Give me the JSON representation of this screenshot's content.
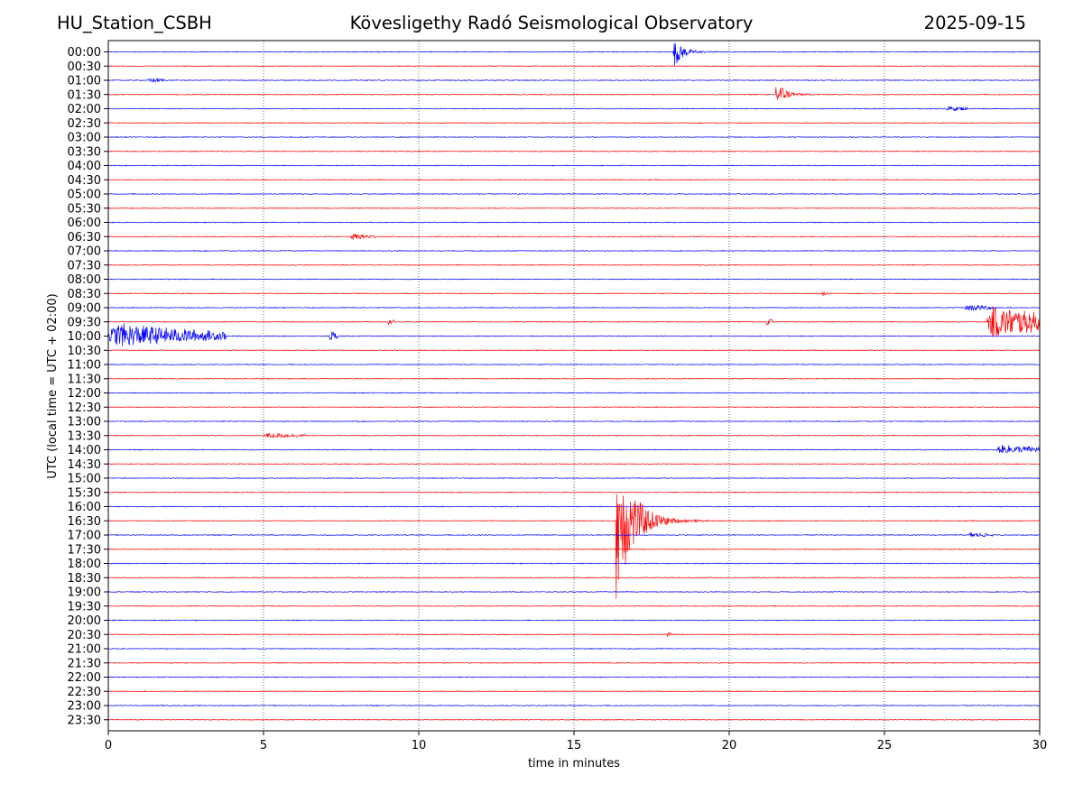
{
  "header": {
    "station": "HU_Station_CSBH",
    "title": "Kövesligethy Radó Seismological Observatory",
    "date": "2025-09-15"
  },
  "chart_data": {
    "type": "line",
    "title": "Kövesligethy Radó Seismological Observatory",
    "xlabel": "time in minutes",
    "ylabel": "UTC (local time = UTC + 02:00)",
    "xlim": [
      0,
      30
    ],
    "xticks": [
      "0",
      "5",
      "10",
      "15",
      "20",
      "25",
      "30"
    ],
    "grid": "vertical dotted lines at 5-minute ticks",
    "colors": [
      "#0000ff",
      "#ff0000"
    ],
    "rows": [
      "00:00",
      "00:30",
      "01:00",
      "01:30",
      "02:00",
      "02:30",
      "03:00",
      "03:30",
      "04:00",
      "04:30",
      "05:00",
      "05:30",
      "06:00",
      "06:30",
      "07:00",
      "07:30",
      "08:00",
      "08:30",
      "09:00",
      "09:30",
      "10:00",
      "10:30",
      "11:00",
      "11:30",
      "12:00",
      "12:30",
      "13:00",
      "13:30",
      "14:00",
      "14:30",
      "15:00",
      "15:30",
      "16:00",
      "16:30",
      "17:00",
      "17:30",
      "18:00",
      "18:30",
      "19:00",
      "19:30",
      "20:00",
      "20:30",
      "21:00",
      "21:30",
      "22:00",
      "22:30",
      "23:00",
      "23:30"
    ],
    "events": [
      {
        "row": "00:00",
        "start_min": 18.2,
        "duration_min": 2.0,
        "amp_up": 0.75,
        "amp_down": 1.0,
        "decay": 3.0,
        "kind": "quake"
      },
      {
        "row": "01:00",
        "start_min": 1.3,
        "duration_min": 0.5,
        "amp_up": 0.15,
        "amp_down": 0.15,
        "decay": 1.0,
        "kind": "burst"
      },
      {
        "row": "01:30",
        "start_min": 21.5,
        "duration_min": 1.8,
        "amp_up": 1.0,
        "amp_down": 0.75,
        "decay": 3.0,
        "kind": "quake"
      },
      {
        "row": "02:00",
        "start_min": 27.0,
        "duration_min": 0.7,
        "amp_up": 0.15,
        "amp_down": 0.15,
        "decay": 1.0,
        "kind": "burst"
      },
      {
        "row": "06:30",
        "start_min": 7.8,
        "duration_min": 0.8,
        "amp_up": 0.2,
        "amp_down": 0.2,
        "decay": 1.0,
        "kind": "burst"
      },
      {
        "row": "08:30",
        "start_min": 23.0,
        "duration_min": 0.2,
        "amp_up": 0.12,
        "amp_down": 0.12,
        "decay": 1.0,
        "kind": "burst"
      },
      {
        "row": "09:00",
        "start_min": 27.6,
        "duration_min": 1.0,
        "amp_up": 0.2,
        "amp_down": 0.2,
        "decay": 1.0,
        "kind": "burst"
      },
      {
        "row": "09:30",
        "start_min": 28.3,
        "duration_min": 1.7,
        "amp_up": 0.95,
        "amp_down": 1.0,
        "decay": 0.5,
        "kind": "burst"
      },
      {
        "row": "09:30",
        "start_min": 21.2,
        "duration_min": 0.2,
        "amp_up": 0.35,
        "amp_down": 0.2,
        "decay": 1.0,
        "kind": "burst"
      },
      {
        "row": "09:30",
        "start_min": 9.0,
        "duration_min": 0.2,
        "amp_up": 0.2,
        "amp_down": 0.2,
        "decay": 1.0,
        "kind": "burst"
      },
      {
        "row": "10:00",
        "start_min": 0.0,
        "duration_min": 3.8,
        "amp_up": 0.9,
        "amp_down": 0.7,
        "decay": 1.2,
        "kind": "burst"
      },
      {
        "row": "10:00",
        "start_min": 7.1,
        "duration_min": 0.3,
        "amp_up": 0.4,
        "amp_down": 0.3,
        "decay": 1.0,
        "kind": "burst"
      },
      {
        "row": "13:30",
        "start_min": 5.0,
        "duration_min": 1.4,
        "amp_up": 0.15,
        "amp_down": 0.15,
        "decay": 1.0,
        "kind": "burst"
      },
      {
        "row": "14:00",
        "start_min": 28.6,
        "duration_min": 1.4,
        "amp_up": 0.3,
        "amp_down": 0.2,
        "decay": 0.6,
        "kind": "burst"
      },
      {
        "row": "16:30",
        "start_min": 16.35,
        "duration_min": 5.2,
        "amp_up": 5.0,
        "amp_down": 5.0,
        "decay": 4.5,
        "kind": "quake"
      },
      {
        "row": "17:00",
        "start_min": 27.7,
        "duration_min": 0.8,
        "amp_up": 0.15,
        "amp_down": 0.15,
        "decay": 1.0,
        "kind": "burst"
      },
      {
        "row": "20:30",
        "start_min": 18.0,
        "duration_min": 0.15,
        "amp_up": 0.15,
        "amp_down": 0.15,
        "decay": 1.0,
        "kind": "burst"
      }
    ]
  }
}
